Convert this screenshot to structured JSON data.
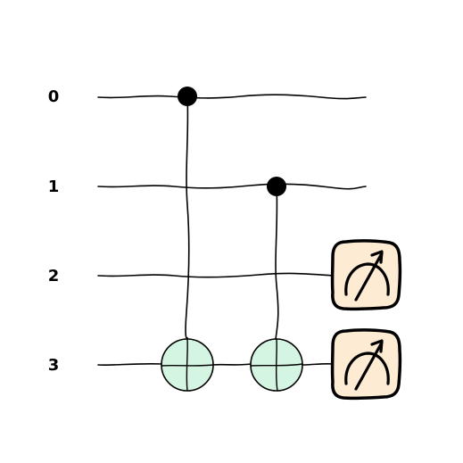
{
  "circuit": {
    "qubits": [
      {
        "label": "0"
      },
      {
        "label": "1"
      },
      {
        "label": "2"
      },
      {
        "label": "3"
      }
    ],
    "gates": [
      {
        "type": "cnot",
        "control": 0,
        "target": 3
      },
      {
        "type": "cnot",
        "control": 1,
        "target": 3
      },
      {
        "type": "measure",
        "qubit": 2
      },
      {
        "type": "measure",
        "qubit": 3
      }
    ],
    "colors": {
      "wire": "#000000",
      "target_fill": "#d5f5e3",
      "measure_fill": "#fdebd3"
    },
    "icons": {
      "measure": "meter-icon"
    }
  }
}
